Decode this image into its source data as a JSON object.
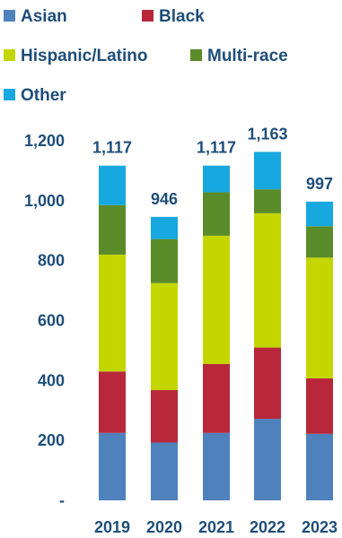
{
  "chart_data": {
    "type": "bar",
    "stacked": true,
    "categories": [
      "2019",
      "2020",
      "2021",
      "2022",
      "2023"
    ],
    "series": [
      {
        "name": "Asian",
        "color": "#4f81bd",
        "values": [
          225,
          193,
          225,
          272,
          222
        ]
      },
      {
        "name": "Black",
        "color": "#b8283a",
        "values": [
          205,
          175,
          230,
          238,
          185
        ]
      },
      {
        "name": "Hispanic/Latino",
        "color": "#c4d600",
        "values": [
          390,
          357,
          428,
          448,
          403
        ]
      },
      {
        "name": "Multi-race",
        "color": "#5b8c2a",
        "values": [
          165,
          147,
          145,
          80,
          105
        ]
      },
      {
        "name": "Other",
        "color": "#18a8e0",
        "values": [
          132,
          74,
          89,
          125,
          82
        ]
      }
    ],
    "totals": [
      "1,117",
      "946",
      "1,117",
      "1,163",
      "997"
    ],
    "y_ticks": [
      {
        "value": 0,
        "label": "-"
      },
      {
        "value": 200,
        "label": "200"
      },
      {
        "value": 400,
        "label": "400"
      },
      {
        "value": 600,
        "label": "600"
      },
      {
        "value": 800,
        "label": "800"
      },
      {
        "value": 1000,
        "label": "1,000"
      },
      {
        "value": 1200,
        "label": "1,200"
      }
    ],
    "ylim": [
      0,
      1200
    ],
    "grid": false,
    "legend_position": "top-left",
    "title": "",
    "xlabel": "",
    "ylabel": ""
  }
}
